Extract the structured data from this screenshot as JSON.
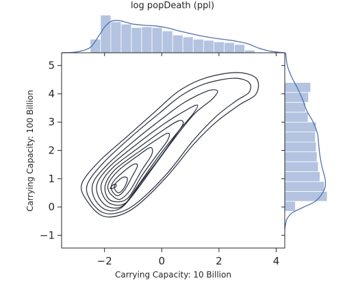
{
  "chart_data": {
    "type": "jointplot-kde",
    "title": "log popDeath (ppl)",
    "xlabel": "Carrying Capacity: 10 Billion",
    "ylabel": "Carrying Capacity: 100 Billion",
    "xlim": [
      -3.5,
      4.3
    ],
    "ylim": [
      -1.45,
      5.45
    ],
    "xticks": [
      -2,
      0,
      2,
      4
    ],
    "yticks": [
      -1,
      0,
      1,
      2,
      3,
      4,
      5
    ],
    "xtick_labels": [
      "−2",
      "0",
      "2",
      "4"
    ],
    "ytick_labels": [
      "−1",
      "0",
      "1",
      "2",
      "3",
      "4",
      "5"
    ],
    "colors": {
      "histogram_fill": "#b3c3e0",
      "density_line": "#4c72b0",
      "contour": "#262a3a",
      "axes": "#262626"
    },
    "x_marginal": {
      "bin_edges": [
        -2.5,
        -2.14,
        -1.78,
        -1.42,
        -1.06,
        -0.7,
        -0.34,
        0.02,
        0.38,
        0.74,
        1.1,
        1.46,
        1.82,
        2.18,
        2.54,
        2.9,
        3.26
      ],
      "relative_heights": [
        0.36,
        1.0,
        0.82,
        0.76,
        0.67,
        0.69,
        0.67,
        0.58,
        0.47,
        0.42,
        0.36,
        0.33,
        0.29,
        0.27,
        0.22,
        0.07
      ],
      "kde": [
        [
          -3.5,
          0.0
        ],
        [
          -3.0,
          0.02
        ],
        [
          -2.5,
          0.14
        ],
        [
          -2.2,
          0.45
        ],
        [
          -2.0,
          0.68
        ],
        [
          -1.8,
          0.82
        ],
        [
          -1.6,
          0.86
        ],
        [
          -1.4,
          0.84
        ],
        [
          -1.2,
          0.8
        ],
        [
          -1.0,
          0.76
        ],
        [
          -0.6,
          0.73
        ],
        [
          -0.2,
          0.71
        ],
        [
          0.2,
          0.66
        ],
        [
          0.6,
          0.58
        ],
        [
          1.0,
          0.51
        ],
        [
          1.5,
          0.43
        ],
        [
          2.0,
          0.37
        ],
        [
          2.5,
          0.32
        ],
        [
          3.0,
          0.24
        ],
        [
          3.4,
          0.12
        ],
        [
          3.8,
          0.04
        ],
        [
          4.3,
          0.0
        ]
      ]
    },
    "y_marginal": {
      "bin_edges": [
        0.2,
        0.55,
        0.9,
        1.25,
        1.6,
        1.95,
        2.3,
        2.65,
        3.0,
        3.35,
        3.7,
        4.05,
        4.4
      ],
      "relative_heights": [
        1.0,
        0.93,
        0.83,
        0.79,
        0.76,
        0.74,
        0.72,
        0.74,
        0.55,
        0.49,
        0.56,
        0.61
      ],
      "extra_bar": {
        "range": [
          -0.15,
          0.2
        ],
        "relative_height": 0.25
      },
      "kde": [
        [
          -0.8,
          0.0
        ],
        [
          -0.6,
          0.02
        ],
        [
          -0.4,
          0.06
        ],
        [
          -0.2,
          0.18
        ],
        [
          0.0,
          0.45
        ],
        [
          0.2,
          0.72
        ],
        [
          0.45,
          0.87
        ],
        [
          0.7,
          0.95
        ],
        [
          1.0,
          0.95
        ],
        [
          1.4,
          0.88
        ],
        [
          1.8,
          0.83
        ],
        [
          2.2,
          0.8
        ],
        [
          2.6,
          0.77
        ],
        [
          3.0,
          0.67
        ],
        [
          3.4,
          0.52
        ],
        [
          3.8,
          0.42
        ],
        [
          4.2,
          0.3
        ],
        [
          4.6,
          0.16
        ],
        [
          5.0,
          0.06
        ],
        [
          5.45,
          0.02
        ]
      ]
    },
    "contours": [
      {
        "level": 1,
        "points": [
          [
            -2.1,
            -0.3
          ],
          [
            -2.6,
            0.2
          ],
          [
            -2.8,
            0.8
          ],
          [
            -2.2,
            1.6
          ],
          [
            -1.2,
            2.5
          ],
          [
            -0.2,
            3.4
          ],
          [
            0.6,
            4.1
          ],
          [
            1.5,
            4.55
          ],
          [
            2.6,
            4.75
          ],
          [
            3.3,
            4.55
          ],
          [
            3.3,
            4.0
          ],
          [
            2.7,
            3.6
          ],
          [
            1.9,
            3.0
          ],
          [
            1.1,
            2.2
          ],
          [
            0.2,
            1.1
          ],
          [
            -0.8,
            0.1
          ],
          [
            -1.5,
            -0.3
          ]
        ]
      },
      {
        "level": 2,
        "points": [
          [
            -2.05,
            -0.2
          ],
          [
            -2.5,
            0.25
          ],
          [
            -2.6,
            0.8
          ],
          [
            -2.05,
            1.55
          ],
          [
            -1.1,
            2.45
          ],
          [
            -0.1,
            3.3
          ],
          [
            0.7,
            3.95
          ],
          [
            1.5,
            4.35
          ],
          [
            2.5,
            4.55
          ],
          [
            3.05,
            4.4
          ],
          [
            3.05,
            4.05
          ],
          [
            2.6,
            3.75
          ],
          [
            1.9,
            3.2
          ],
          [
            1.1,
            2.35
          ],
          [
            0.2,
            1.2
          ],
          [
            -0.8,
            0.2
          ],
          [
            -1.45,
            -0.18
          ]
        ]
      },
      {
        "level": 3,
        "points": [
          [
            -1.95,
            -0.1
          ],
          [
            -2.35,
            0.3
          ],
          [
            -2.4,
            0.85
          ],
          [
            -1.9,
            1.5
          ],
          [
            -0.95,
            2.35
          ],
          [
            0.05,
            3.15
          ],
          [
            0.8,
            3.7
          ],
          [
            1.6,
            4.1
          ],
          [
            1.95,
            4.1
          ],
          [
            1.75,
            3.8
          ],
          [
            1.15,
            3.3
          ],
          [
            0.5,
            2.5
          ],
          [
            -0.3,
            1.4
          ],
          [
            -0.95,
            0.5
          ],
          [
            -1.45,
            -0.05
          ]
        ]
      },
      {
        "level": 4,
        "points": [
          [
            -1.85,
            0.0
          ],
          [
            -2.2,
            0.35
          ],
          [
            -2.25,
            0.85
          ],
          [
            -1.8,
            1.45
          ],
          [
            -0.9,
            2.2
          ],
          [
            0.1,
            2.95
          ],
          [
            0.9,
            3.45
          ],
          [
            1.25,
            3.6
          ],
          [
            1.1,
            3.3
          ],
          [
            0.6,
            2.7
          ],
          [
            -0.1,
            1.8
          ],
          [
            -0.8,
            0.8
          ],
          [
            -1.35,
            0.05
          ]
        ]
      },
      {
        "level": 5,
        "points": [
          [
            -1.75,
            0.1
          ],
          [
            -2.05,
            0.4
          ],
          [
            -2.1,
            0.85
          ],
          [
            -1.7,
            1.4
          ],
          [
            -0.8,
            2.1
          ],
          [
            0.1,
            2.75
          ],
          [
            0.6,
            3.05
          ],
          [
            0.75,
            2.95
          ],
          [
            0.5,
            2.55
          ],
          [
            -0.1,
            1.7
          ],
          [
            -0.7,
            0.9
          ],
          [
            -1.25,
            0.15
          ]
        ]
      },
      {
        "level": 6,
        "points": [
          [
            -1.7,
            0.2
          ],
          [
            -1.95,
            0.45
          ],
          [
            -1.95,
            0.85
          ],
          [
            -1.6,
            1.35
          ],
          [
            -0.8,
            1.95
          ],
          [
            0.0,
            2.5
          ],
          [
            0.25,
            2.6
          ],
          [
            0.2,
            2.35
          ],
          [
            -0.2,
            1.8
          ],
          [
            -0.7,
            1.1
          ],
          [
            -1.2,
            0.3
          ]
        ]
      },
      {
        "level": 7,
        "points": [
          [
            -1.6,
            0.3
          ],
          [
            -1.85,
            0.55
          ],
          [
            -1.85,
            0.85
          ],
          [
            -1.5,
            1.3
          ],
          [
            -0.85,
            1.8
          ],
          [
            -0.4,
            2.1
          ],
          [
            -0.35,
            1.85
          ],
          [
            -0.7,
            1.3
          ],
          [
            -1.1,
            0.6
          ],
          [
            -1.4,
            0.3
          ]
        ]
      },
      {
        "level": 8,
        "points": [
          [
            -1.55,
            0.4
          ],
          [
            -1.75,
            0.6
          ],
          [
            -1.72,
            0.85
          ],
          [
            -1.45,
            1.15
          ],
          [
            -1.0,
            1.5
          ],
          [
            -0.85,
            1.45
          ],
          [
            -1.05,
            1.05
          ],
          [
            -1.3,
            0.6
          ]
        ]
      },
      {
        "level": 9,
        "points": [
          [
            -1.5,
            0.5
          ],
          [
            -1.65,
            0.65
          ],
          [
            -1.6,
            0.85
          ],
          [
            -1.35,
            1.05
          ],
          [
            -1.2,
            1.0
          ],
          [
            -1.3,
            0.7
          ]
        ]
      },
      {
        "level": 10,
        "points": [
          [
            -1.8,
            0.65
          ],
          [
            -1.7,
            0.78
          ],
          [
            -1.6,
            0.8
          ],
          [
            -1.62,
            0.7
          ]
        ]
      }
    ]
  }
}
